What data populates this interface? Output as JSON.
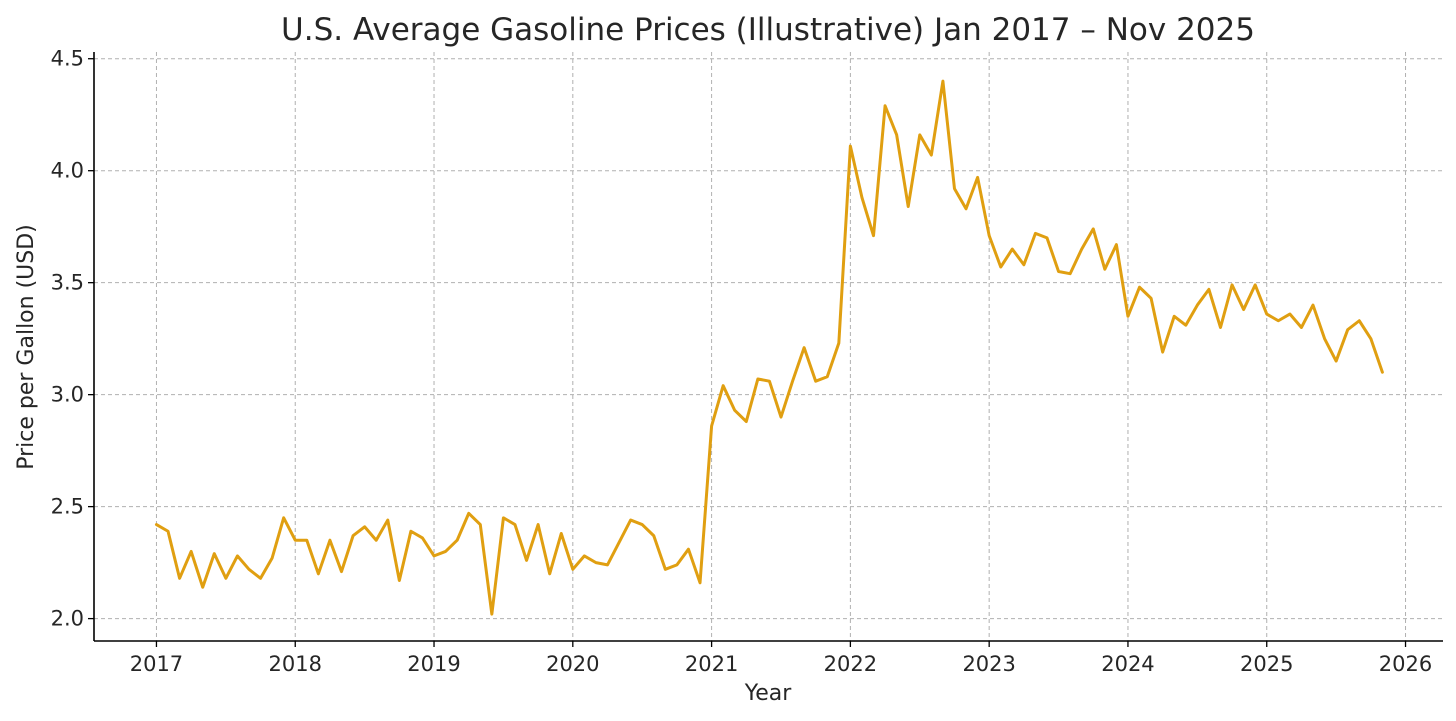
{
  "chart_data": {
    "type": "line",
    "title": "U.S. Average Gasoline Prices (Illustrative) Jan 2017 – Nov 2025",
    "xlabel": "Year",
    "ylabel": "Price per Gallon (USD)",
    "xlim": [
      2016.55,
      2026.27
    ],
    "ylim": [
      1.9,
      4.53
    ],
    "x_ticks": [
      "2017",
      "2018",
      "2019",
      "2020",
      "2021",
      "2022",
      "2023",
      "2024",
      "2025",
      "2026"
    ],
    "y_ticks": [
      "2.0",
      "2.5",
      "3.0",
      "3.5",
      "4.0",
      "4.5"
    ],
    "grid": true,
    "legend": "none",
    "line_color": "#E09F11",
    "series": [
      {
        "x_start": "2017-01",
        "x_end": "2025-11",
        "frequency": "monthly",
        "values": [
          2.42,
          2.39,
          2.18,
          2.3,
          2.14,
          2.29,
          2.18,
          2.28,
          2.22,
          2.18,
          2.27,
          2.45,
          2.35,
          2.35,
          2.2,
          2.35,
          2.21,
          2.37,
          2.41,
          2.35,
          2.44,
          2.17,
          2.39,
          2.36,
          2.28,
          2.3,
          2.35,
          2.47,
          2.42,
          2.02,
          2.45,
          2.42,
          2.26,
          2.42,
          2.2,
          2.38,
          2.22,
          2.28,
          2.25,
          2.24,
          2.34,
          2.44,
          2.42,
          2.37,
          2.22,
          2.24,
          2.31,
          2.16,
          2.86,
          3.04,
          2.93,
          2.88,
          3.07,
          3.06,
          2.9,
          3.06,
          3.21,
          3.06,
          3.08,
          3.23,
          4.11,
          3.88,
          3.71,
          4.29,
          4.16,
          3.84,
          4.16,
          4.07,
          4.4,
          3.92,
          3.83,
          3.97,
          3.71,
          3.57,
          3.65,
          3.58,
          3.72,
          3.7,
          3.55,
          3.54,
          3.65,
          3.74,
          3.56,
          3.67,
          3.35,
          3.48,
          3.43,
          3.19,
          3.35,
          3.31,
          3.4,
          3.47,
          3.3,
          3.49,
          3.38,
          3.49,
          3.36,
          3.33,
          3.36,
          3.3,
          3.4,
          3.25,
          3.15,
          3.29,
          3.33,
          3.25,
          3.1
        ]
      }
    ]
  }
}
